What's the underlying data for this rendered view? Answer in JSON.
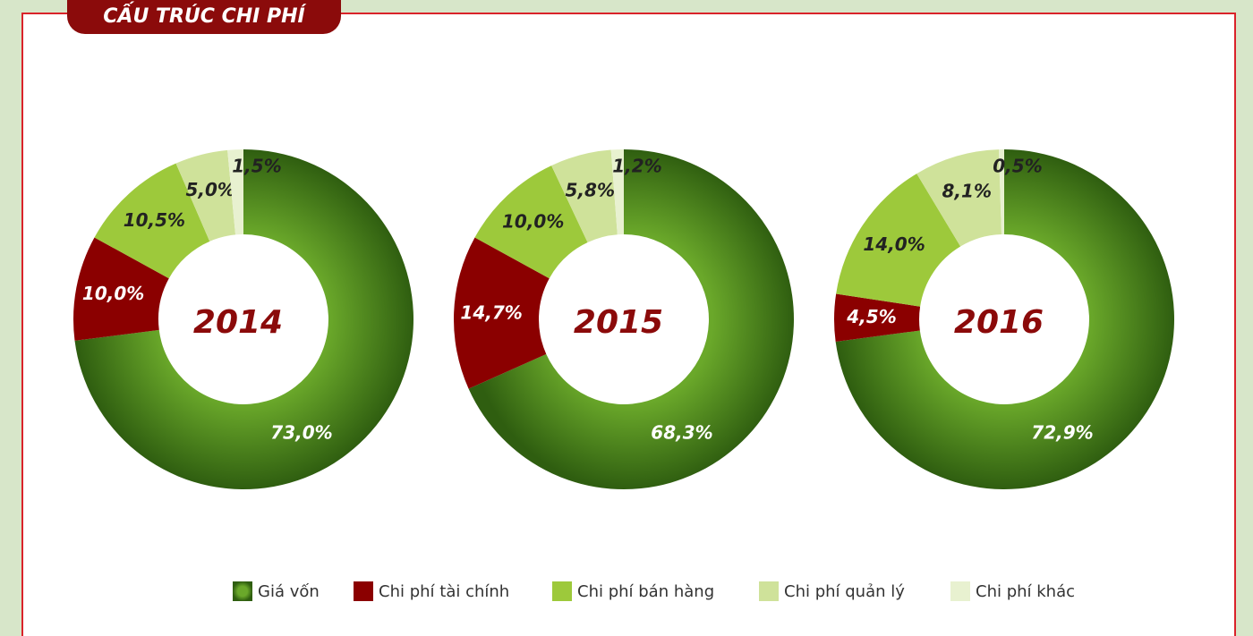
{
  "header": {
    "title": "CẤU TRÚC CHI PHÍ"
  },
  "categories": [
    "Giá vốn",
    "Chi phí tài chính",
    "Chi phí bán hàng",
    "Chi phí quản lý",
    "Chi phí khác"
  ],
  "colors": [
    "#4f8f1a",
    "#8b0000",
    "#9dc93b",
    "#cfe29a",
    "#e8f1d0"
  ],
  "chart_data": [
    {
      "type": "donut",
      "title": "2014",
      "values": [
        73.0,
        10.0,
        10.5,
        5.0,
        1.5
      ],
      "value_labels": [
        "73,0%",
        "10,0%",
        "10,5%",
        "5,0%",
        "1,5%"
      ]
    },
    {
      "type": "donut",
      "title": "2015",
      "values": [
        68.3,
        14.7,
        10.0,
        5.8,
        1.2
      ],
      "value_labels": [
        "68,3%",
        "14,7%",
        "10,0%",
        "5,8%",
        "1,2%"
      ]
    },
    {
      "type": "donut",
      "title": "2016",
      "values": [
        72.9,
        4.5,
        14.0,
        8.1,
        0.5
      ],
      "value_labels": [
        "72,9%",
        "4,5%",
        "14,0%",
        "8,1%",
        "0,5%"
      ]
    }
  ]
}
